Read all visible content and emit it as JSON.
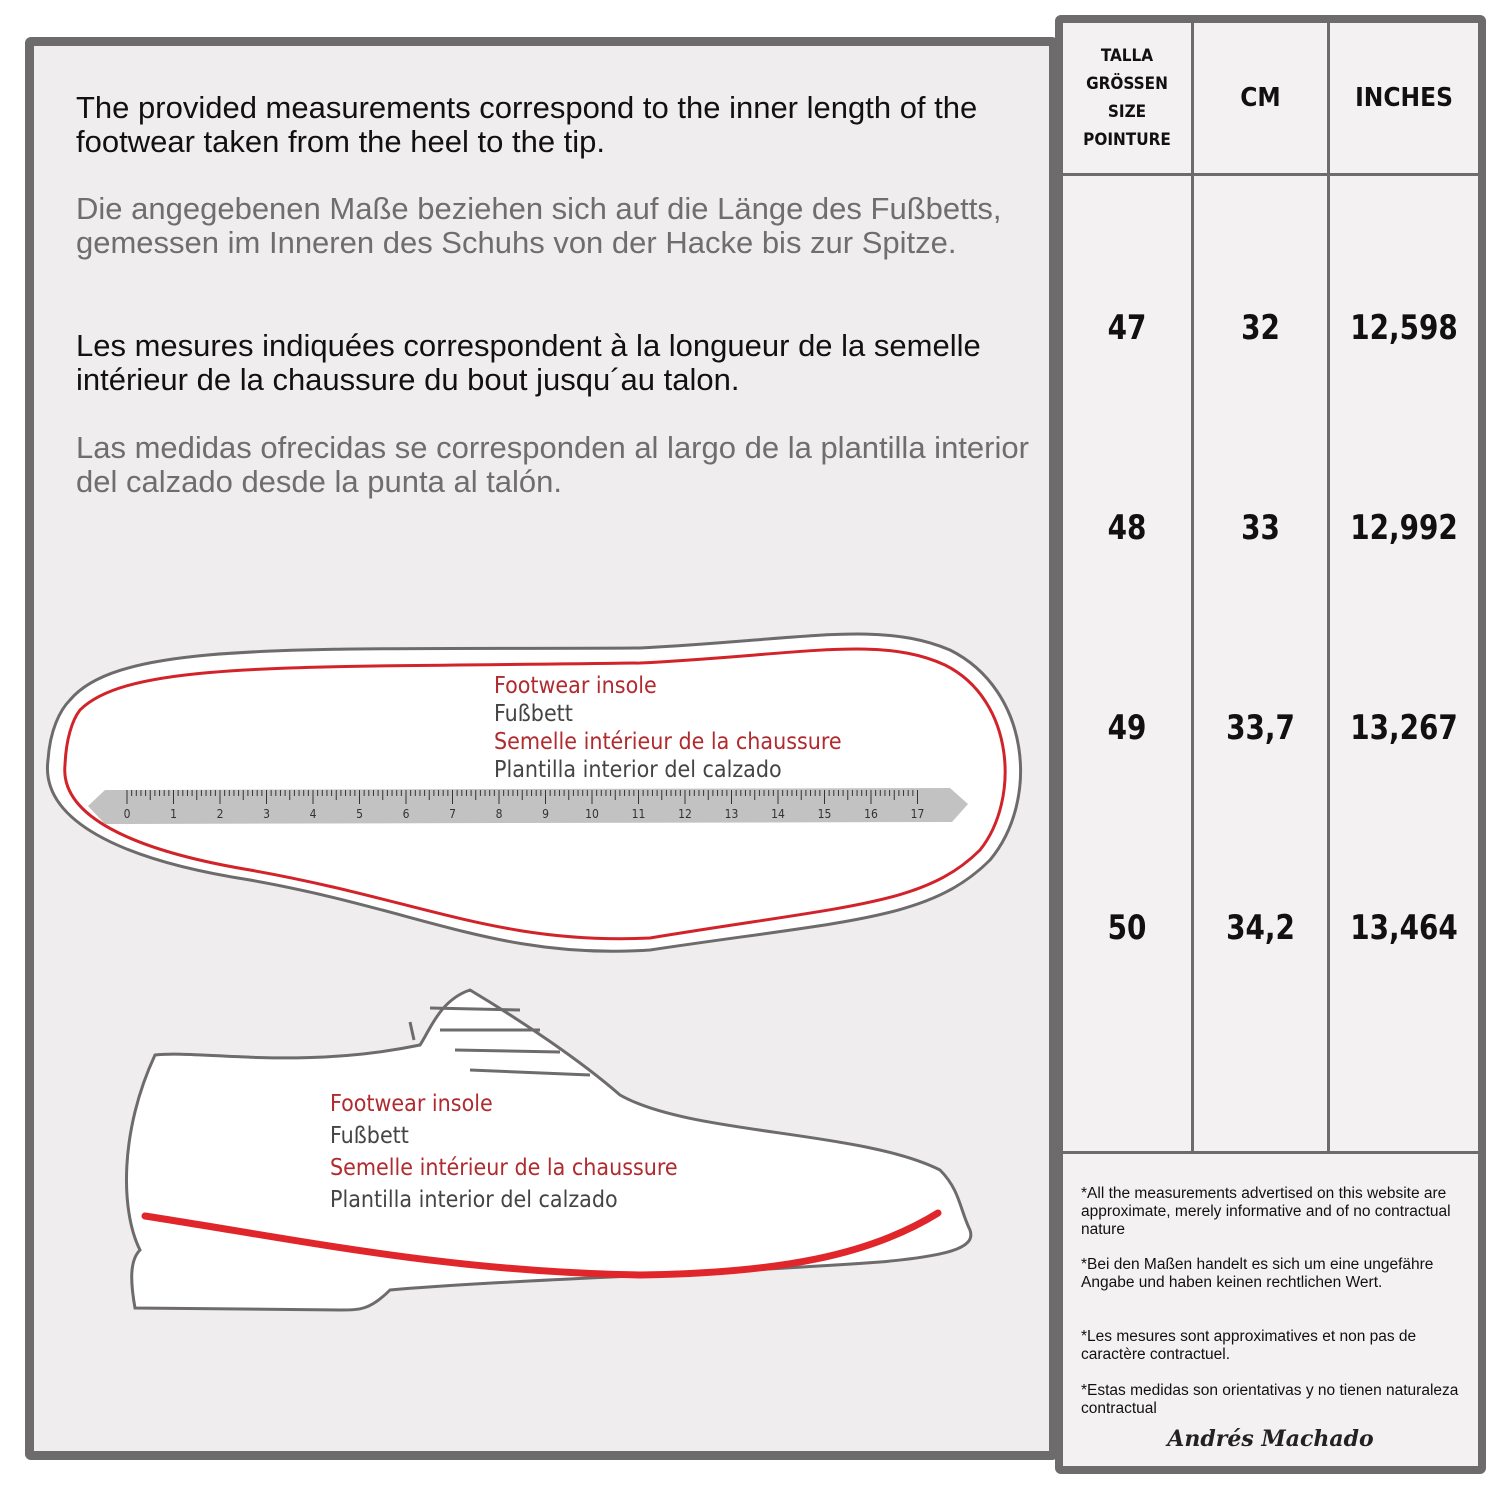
{
  "intro": {
    "en": "The provided measurements correspond to the inner length of the footwear taken from the heel to the tip.",
    "de": "Die angegebenen Maße beziehen sich auf die Länge des Fußbetts, gemessen im Inneren des Schuhs von der Hacke bis zur Spitze.",
    "fr": "Les mesures indiquées correspondent à la longueur de la semelle intérieur de la chaussure du bout jusqu´au talon.",
    "es": "Las medidas ofrecidas se corresponden al largo de la plantilla interior del calzado desde la punta al talón."
  },
  "insole_labels": [
    "Footwear insole",
    "Fußbett",
    "Semelle intérieur de la chaussure",
    "Plantilla interior del calzado"
  ],
  "ruler_numbers": [
    "0",
    "1",
    "2",
    "3",
    "4",
    "5",
    "6",
    "7",
    "8",
    "9",
    "10",
    "11",
    "12",
    "13",
    "14",
    "15",
    "16",
    "17"
  ],
  "shoe_labels": [
    "Footwear insole",
    "Fußbett",
    "Semelle intérieur de la chaussure",
    "Plantilla interior del calzado"
  ],
  "table": {
    "headers": {
      "size": [
        "TALLA",
        "GRÖSSEN",
        "SIZE",
        "POINTURE"
      ],
      "cm": "CM",
      "inches": "INCHES"
    },
    "rows": [
      {
        "size": "47",
        "cm": "32",
        "inches": "12,598"
      },
      {
        "size": "48",
        "cm": "33",
        "inches": "12,992"
      },
      {
        "size": "49",
        "cm": "33,7",
        "inches": "13,267"
      },
      {
        "size": "50",
        "cm": "34,2",
        "inches": "13,464"
      }
    ]
  },
  "notes": [
    "*All the measurements advertised on this website are approximate, merely informative and of no contractual nature",
    "*Bei den Maßen handelt es sich um eine ungefähre Angabe und haben keinen rechtlichen Wert.",
    "*Les mesures sont approximatives et non pas de caractère contractuel.",
    "*Estas medidas son orientativas y no tienen naturaleza contractual"
  ],
  "brand": "Andrés Machado",
  "colors": {
    "frame": "#6d6b6b",
    "accent_red": "#b02a2e",
    "insole_line": "#e0262b",
    "background": "#efeded"
  }
}
